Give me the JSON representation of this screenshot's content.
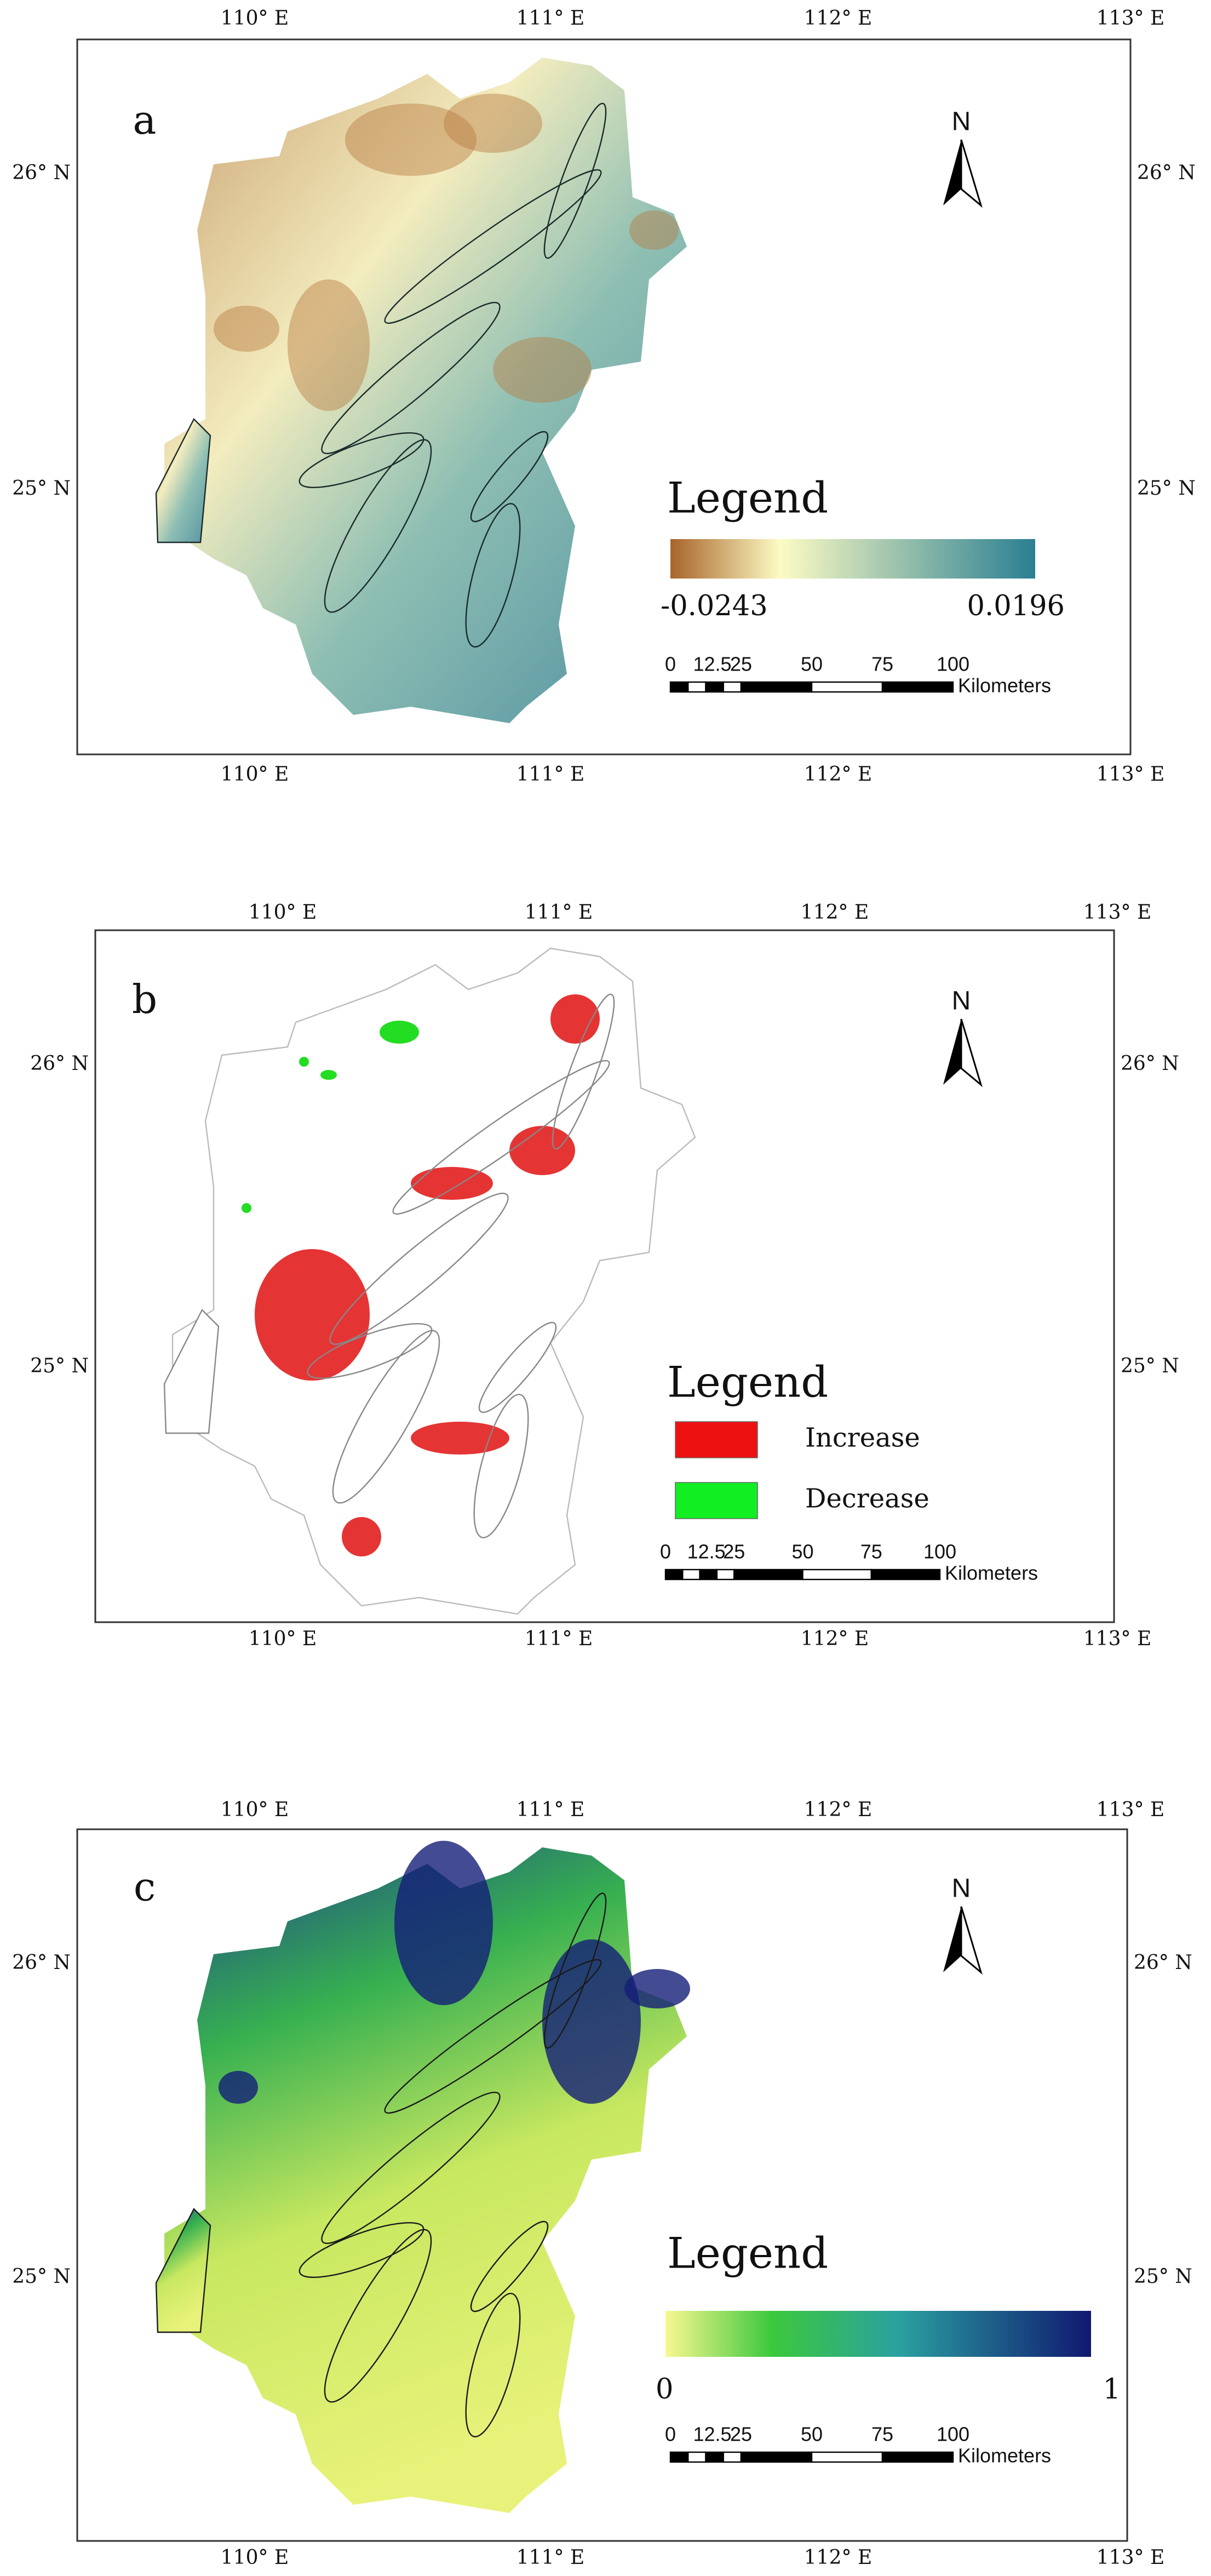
{
  "panels": [
    {
      "label": "a",
      "legend": {
        "title": "Legend",
        "min": "-0.0243",
        "max": "0.0196"
      }
    },
    {
      "label": "b",
      "legend": {
        "title": "Legend",
        "items": [
          "Increase",
          "Decrease"
        ]
      }
    },
    {
      "label": "c",
      "legend": {
        "title": "Legend",
        "min": "0",
        "max": "1"
      }
    }
  ],
  "longitude_labels": [
    "110° E",
    "111° E",
    "112° E",
    "113° E"
  ],
  "latitude_labels": [
    "26° N",
    "25° N"
  ],
  "north_label": "N",
  "scale_bar": {
    "labels": [
      "0",
      "12.5",
      "25",
      "50",
      "75",
      "100"
    ],
    "unit": "Kilometers"
  }
}
